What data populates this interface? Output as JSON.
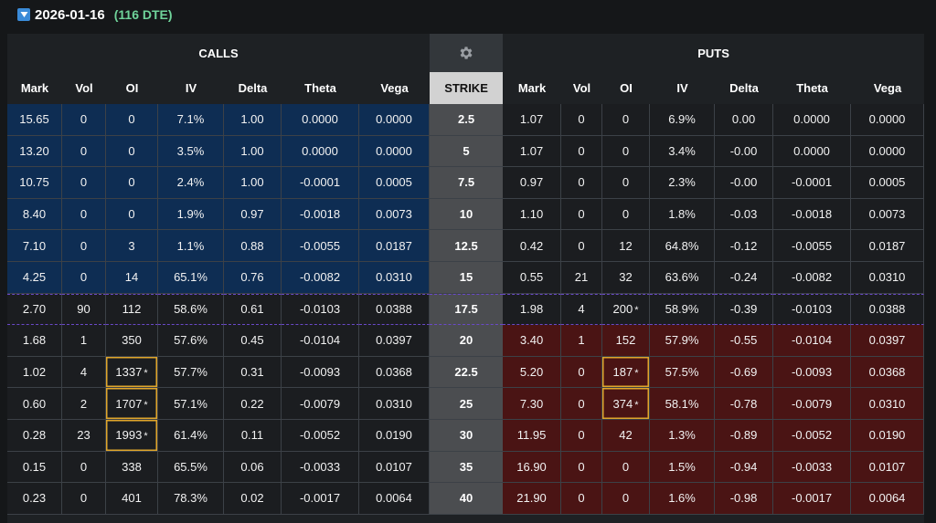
{
  "expiry": {
    "date": "2026-01-16",
    "dte": "(116 DTE)",
    "toggle_icon": "triangle-down-icon"
  },
  "sections": {
    "calls": "CALLS",
    "puts": "PUTS",
    "settings_icon": "gear-icon"
  },
  "headers": {
    "calls": [
      "Mark",
      "Vol",
      "OI",
      "IV",
      "Delta",
      "Theta",
      "Vega"
    ],
    "strike": "STRIKE",
    "puts": [
      "Mark",
      "Vol",
      "OI",
      "IV",
      "Delta",
      "Theta",
      "Vega"
    ]
  },
  "colors": {
    "call_itm": "#0e2d53",
    "put_itm": "#4a1414",
    "strike": "#4b4d50",
    "highlight": "#e0a62c",
    "atm_border": "#6a49c8",
    "dte": "#6fd39a"
  },
  "rows": [
    {
      "strike": "2.5",
      "call": [
        "15.65",
        "0",
        "0",
        "7.1%",
        "1.00",
        "0.0000",
        "0.0000"
      ],
      "put": [
        "1.07",
        "0",
        "0",
        "6.9%",
        "0.00",
        "0.0000",
        "0.0000"
      ]
    },
    {
      "strike": "5",
      "call": [
        "13.20",
        "0",
        "0",
        "3.5%",
        "1.00",
        "0.0000",
        "0.0000"
      ],
      "put": [
        "1.07",
        "0",
        "0",
        "3.4%",
        "-0.00",
        "0.0000",
        "0.0000"
      ]
    },
    {
      "strike": "7.5",
      "call": [
        "10.75",
        "0",
        "0",
        "2.4%",
        "1.00",
        "-0.0001",
        "0.0005"
      ],
      "put": [
        "0.97",
        "0",
        "0",
        "2.3%",
        "-0.00",
        "-0.0001",
        "0.0005"
      ]
    },
    {
      "strike": "10",
      "call": [
        "8.40",
        "0",
        "0",
        "1.9%",
        "0.97",
        "-0.0018",
        "0.0073"
      ],
      "put": [
        "1.10",
        "0",
        "0",
        "1.8%",
        "-0.03",
        "-0.0018",
        "0.0073"
      ]
    },
    {
      "strike": "12.5",
      "call": [
        "7.10",
        "0",
        "3",
        "1.1%",
        "0.88",
        "-0.0055",
        "0.0187"
      ],
      "put": [
        "0.42",
        "0",
        "12",
        "64.8%",
        "-0.12",
        "-0.0055",
        "0.0187"
      ]
    },
    {
      "strike": "15",
      "call": [
        "4.25",
        "0",
        "14",
        "65.1%",
        "0.76",
        "-0.0082",
        "0.0310"
      ],
      "put": [
        "0.55",
        "21",
        "32",
        "63.6%",
        "-0.24",
        "-0.0082",
        "0.0310"
      ]
    },
    {
      "strike": "17.5",
      "call": [
        "2.70",
        "90",
        "112",
        "58.6%",
        "0.61",
        "-0.0103",
        "0.0388"
      ],
      "put": [
        "1.98",
        "4",
        "200",
        "58.9%",
        "-0.39",
        "-0.0103",
        "0.0388"
      ]
    },
    {
      "strike": "20",
      "call": [
        "1.68",
        "1",
        "350",
        "57.6%",
        "0.45",
        "-0.0104",
        "0.0397"
      ],
      "put": [
        "3.40",
        "1",
        "152",
        "57.9%",
        "-0.55",
        "-0.0104",
        "0.0397"
      ]
    },
    {
      "strike": "22.5",
      "call": [
        "1.02",
        "4",
        "1337",
        "57.7%",
        "0.31",
        "-0.0093",
        "0.0368"
      ],
      "put": [
        "5.20",
        "0",
        "187",
        "57.5%",
        "-0.69",
        "-0.0093",
        "0.0368"
      ]
    },
    {
      "strike": "25",
      "call": [
        "0.60",
        "2",
        "1707",
        "57.1%",
        "0.22",
        "-0.0079",
        "0.0310"
      ],
      "put": [
        "7.30",
        "0",
        "374",
        "58.1%",
        "-0.78",
        "-0.0079",
        "0.0310"
      ]
    },
    {
      "strike": "30",
      "call": [
        "0.28",
        "23",
        "1993",
        "61.4%",
        "0.11",
        "-0.0052",
        "0.0190"
      ],
      "put": [
        "11.95",
        "0",
        "42",
        "1.3%",
        "-0.89",
        "-0.0052",
        "0.0190"
      ]
    },
    {
      "strike": "35",
      "call": [
        "0.15",
        "0",
        "338",
        "65.5%",
        "0.06",
        "-0.0033",
        "0.0107"
      ],
      "put": [
        "16.90",
        "0",
        "0",
        "1.5%",
        "-0.94",
        "-0.0033",
        "0.0107"
      ]
    },
    {
      "strike": "40",
      "call": [
        "0.23",
        "0",
        "401",
        "78.3%",
        "0.02",
        "-0.0017",
        "0.0064"
      ],
      "put": [
        "21.90",
        "0",
        "0",
        "1.6%",
        "-0.98",
        "-0.0017",
        "0.0064"
      ]
    }
  ],
  "star_mark": "*"
}
